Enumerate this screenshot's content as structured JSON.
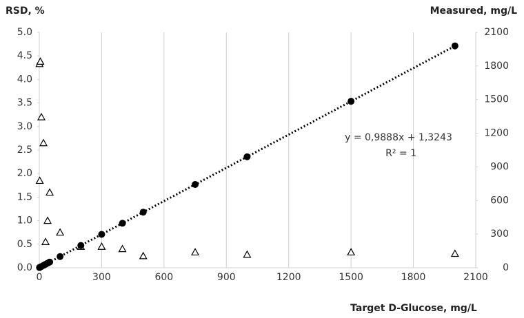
{
  "chart_data": {
    "type": "scatter",
    "ylabel": "RSD, %",
    "y2label": "Measured, mg/L",
    "xlabel": "Target D-Glucose, mg/L",
    "xlim": [
      0,
      2100
    ],
    "xticks": [
      0,
      300,
      600,
      900,
      1200,
      1500,
      1800,
      2100
    ],
    "ylim": [
      0,
      5
    ],
    "yticks": [
      {
        "value": 0,
        "label": "0.0"
      },
      {
        "value": 0.5,
        "label": "0.5"
      },
      {
        "value": 1,
        "label": "1.0"
      },
      {
        "value": 1.5,
        "label": "1.5"
      },
      {
        "value": 2,
        "label": "2.0"
      },
      {
        "value": 2.5,
        "label": "2.5"
      },
      {
        "value": 3,
        "label": "3.0"
      },
      {
        "value": 3.5,
        "label": "3.5"
      },
      {
        "value": 4,
        "label": "4.0"
      },
      {
        "value": 4.5,
        "label": "4.5"
      },
      {
        "value": 5,
        "label": "5.0"
      }
    ],
    "y2lim": [
      0,
      2100
    ],
    "y2ticks": [
      0,
      300,
      600,
      900,
      1200,
      1500,
      1800,
      2100
    ],
    "grid": "x",
    "series": [
      {
        "marker": "triangle",
        "color": "#000000",
        "axis": "y",
        "x": [
          1,
          2,
          5,
          10,
          20,
          30,
          40,
          50,
          100,
          200,
          300,
          400,
          500,
          750,
          1000,
          1500,
          2000
        ],
        "values": [
          4.33,
          1.85,
          4.38,
          3.2,
          2.65,
          0.55,
          1.0,
          1.6,
          0.75,
          0.45,
          0.45,
          0.4,
          0.25,
          0.33,
          0.28,
          0.33,
          0.3
        ]
      },
      {
        "marker": "circle",
        "color": "#000000",
        "axis": "y2",
        "x": [
          1,
          2,
          5,
          10,
          20,
          30,
          40,
          50,
          100,
          200,
          300,
          400,
          500,
          750,
          1000,
          1500,
          2000
        ],
        "values": [
          2,
          3,
          6,
          11,
          21,
          31,
          41,
          51,
          100,
          199,
          298,
          397,
          496,
          743,
          990,
          1485,
          1979
        ]
      }
    ],
    "trendline": {
      "label": "y = 0,9888x + 1,3243",
      "r2_label": "R² = 1",
      "slope": 0.9888,
      "intercept": 1.3243,
      "axis": "y2"
    }
  }
}
